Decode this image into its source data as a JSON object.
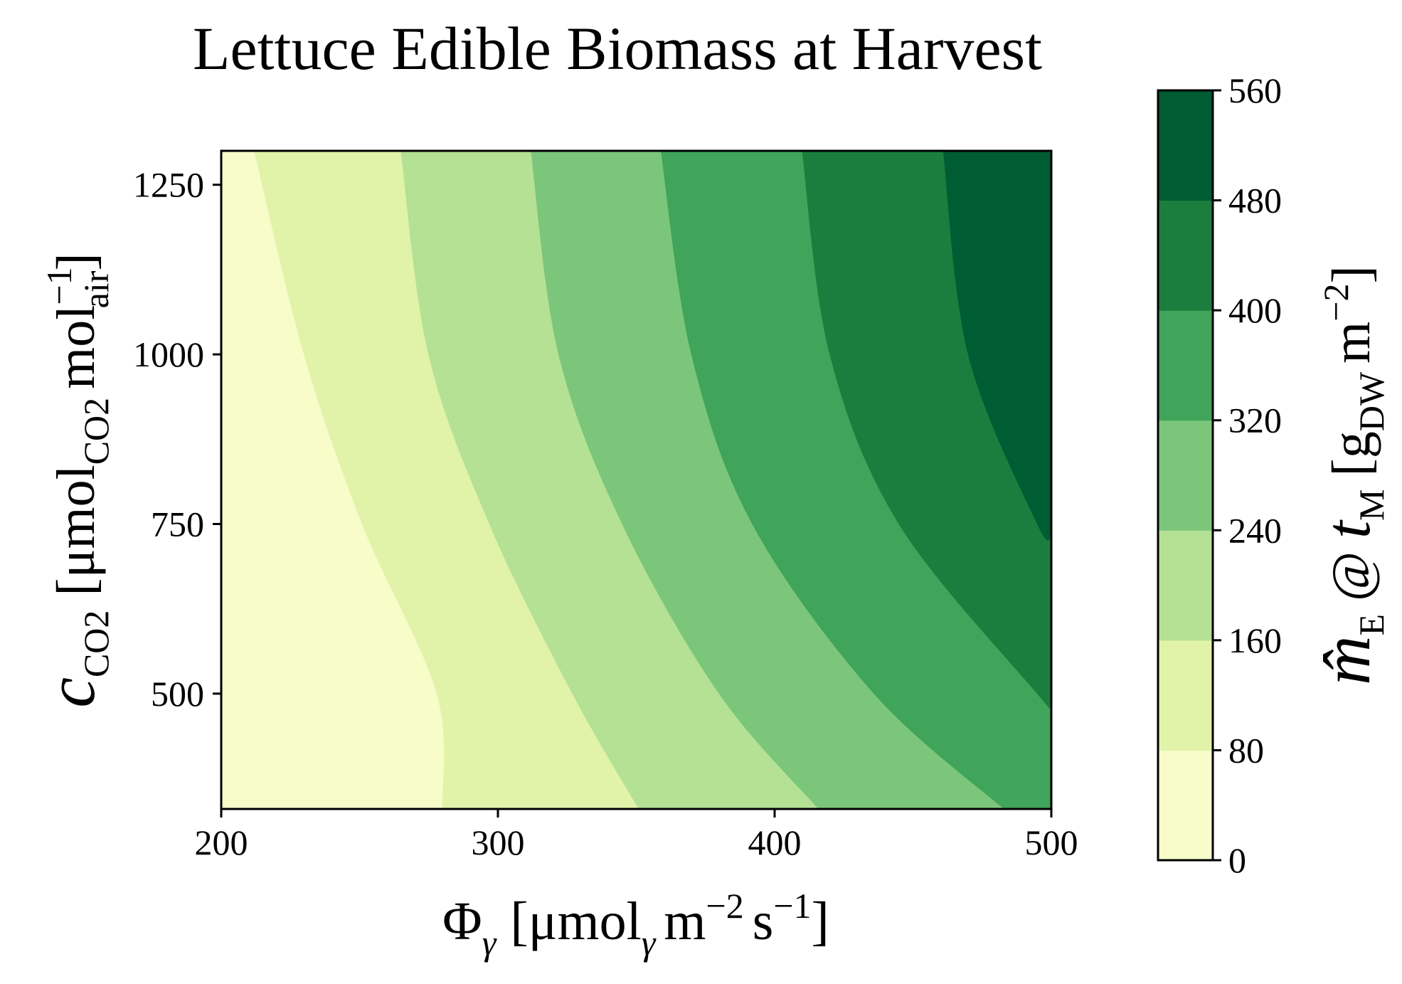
{
  "chart_data": {
    "type": "contourf",
    "title": "Lettuce Edible Biomass at Harvest",
    "xlabel": {
      "symbol": "Φ",
      "symbol_sub": "γ",
      "unit_open": "[μmol",
      "unit_sub": "γ",
      "unit_m": "m",
      "unit_m_exp": "−2",
      "unit_s": "s",
      "unit_s_exp": "−1",
      "unit_close": "]"
    },
    "ylabel": {
      "symbol": "c",
      "symbol_sub": "CO2",
      "unit_open": "[μmol",
      "unit_sub": "CO2",
      "unit_mol": "mol",
      "unit_mol_exp": "−1",
      "unit_mol_sub": "air",
      "unit_close": "]"
    },
    "colorbar_label": {
      "symbol": "m̂",
      "symbol_sub": "E",
      "at": "@",
      "t": "t",
      "t_sub": "M",
      "unit_open": "[g",
      "unit_sub": "DW",
      "unit_m": "m",
      "unit_m_exp": "−2",
      "unit_close": "]"
    },
    "xlim": [
      200,
      500
    ],
    "ylim": [
      330,
      1300
    ],
    "xticks": [
      200,
      300,
      400,
      500
    ],
    "yticks": [
      500,
      750,
      1000,
      1250
    ],
    "levels": [
      0,
      80,
      160,
      240,
      320,
      400,
      480,
      560
    ],
    "level_colors": [
      "#f7fcc9",
      "#e0f3a8",
      "#b4e194",
      "#7bc67b",
      "#40a45a",
      "#1b7e3f",
      "#005c33"
    ],
    "contour_boundaries": [
      {
        "level": 80,
        "points": [
          [
            212,
            1300
          ],
          [
            230,
            1000
          ],
          [
            251,
            750
          ],
          [
            278,
            500
          ],
          [
            280,
            330
          ]
        ]
      },
      {
        "level": 160,
        "points": [
          [
            265,
            1300
          ],
          [
            275,
            1000
          ],
          [
            297,
            750
          ],
          [
            327,
            500
          ],
          [
            351,
            330
          ]
        ]
      },
      {
        "level": 240,
        "points": [
          [
            312,
            1300
          ],
          [
            322,
            1000
          ],
          [
            345,
            750
          ],
          [
            380,
            500
          ],
          [
            416,
            330
          ]
        ]
      },
      {
        "level": 320,
        "points": [
          [
            359,
            1300
          ],
          [
            370,
            1000
          ],
          [
            392,
            750
          ],
          [
            436,
            500
          ],
          [
            483,
            330
          ]
        ]
      },
      {
        "level": 400,
        "points": [
          [
            410,
            1300
          ],
          [
            420,
            1000
          ],
          [
            445,
            750
          ],
          [
            495,
            500
          ],
          [
            500,
            480
          ]
        ]
      },
      {
        "level": 480,
        "points": [
          [
            461,
            1300
          ],
          [
            470,
            1000
          ],
          [
            495,
            750
          ],
          [
            500,
            735
          ]
        ]
      }
    ],
    "grid": false,
    "colormap": "YlGn"
  }
}
